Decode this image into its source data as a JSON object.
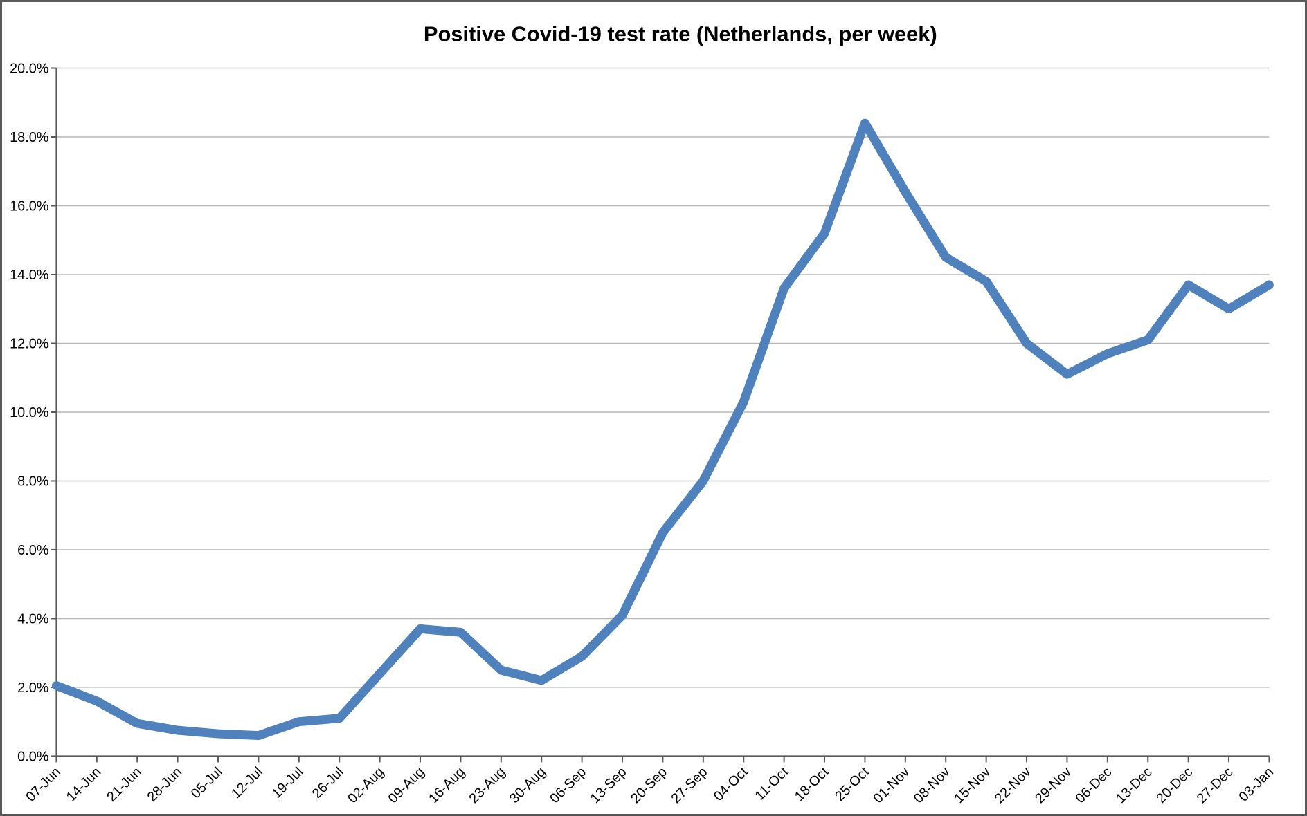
{
  "chart_data": {
    "type": "line",
    "title": "Positive Covid-19 test rate (Netherlands, per week)",
    "categories": [
      "07-Jun",
      "14-Jun",
      "21-Jun",
      "28-Jun",
      "05-Jul",
      "12-Jul",
      "19-Jul",
      "26-Jul",
      "02-Aug",
      "09-Aug",
      "16-Aug",
      "23-Aug",
      "30-Aug",
      "06-Sep",
      "13-Sep",
      "20-Sep",
      "27-Sep",
      "04-Oct",
      "11-Oct",
      "18-Oct",
      "25-Oct",
      "01-Nov",
      "08-Nov",
      "15-Nov",
      "22-Nov",
      "29-Nov",
      "06-Dec",
      "13-Dec",
      "20-Dec",
      "27-Dec",
      "03-Jan"
    ],
    "values": [
      2.05,
      1.6,
      0.95,
      0.75,
      0.65,
      0.6,
      1.0,
      1.1,
      2.4,
      3.7,
      3.6,
      2.5,
      2.2,
      2.9,
      4.1,
      6.5,
      8.0,
      10.3,
      13.6,
      15.2,
      18.4,
      16.4,
      14.5,
      13.8,
      12.0,
      11.1,
      11.7,
      12.1,
      13.7,
      13.0,
      13.7
    ],
    "xlabel": "",
    "ylabel": "",
    "ylim": [
      0,
      20
    ],
    "ytick_values": [
      0,
      2,
      4,
      6,
      8,
      10,
      12,
      14,
      16,
      18,
      20
    ],
    "ytick_labels": [
      "0.0%",
      "2.0%",
      "4.0%",
      "6.0%",
      "8.0%",
      "10.0%",
      "12.0%",
      "14.0%",
      "16.0%",
      "18.0%",
      "20.0%"
    ],
    "grid": true,
    "legend": "none",
    "series_name": "positive-test-rate",
    "series_color": "#4F81BD",
    "gridline_color": "#B7B7B7",
    "axis_color": "#595959",
    "text_color": "#000000"
  }
}
